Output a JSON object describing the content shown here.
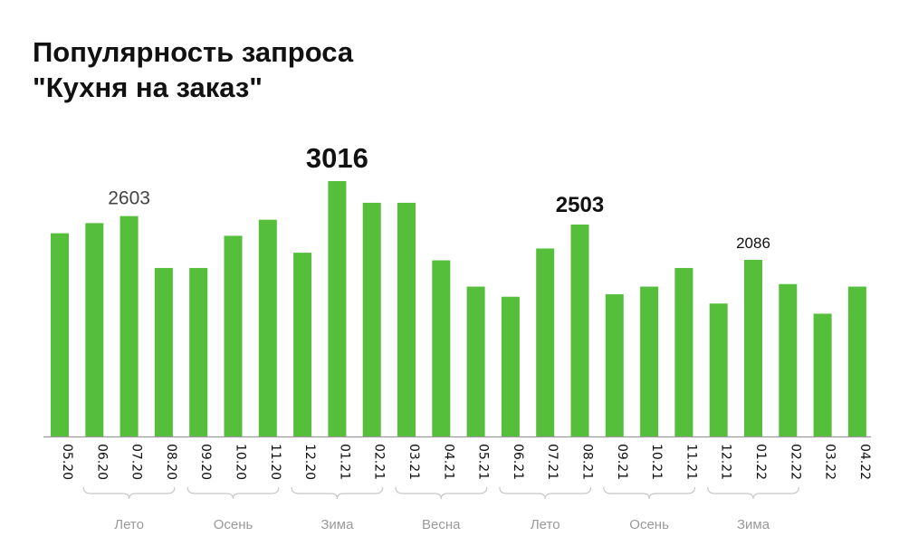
{
  "title_lines": [
    "Популярность запроса",
    "\"Кухня на заказ\""
  ],
  "colors": {
    "bar": "#55bf3b",
    "axis": "#9a9a9a",
    "brace": "#c8c8c8",
    "season_text": "#9a9a9a",
    "text": "#111111",
    "muted_label": "#444444"
  },
  "chart_data": {
    "type": "bar",
    "title": "Популярность запроса \"Кухня на заказ\"",
    "xlabel": "",
    "ylabel": "",
    "ylim": [
      0,
      3016
    ],
    "grid": false,
    "categories": [
      "05.20",
      "06.20",
      "07.20",
      "08.20",
      "09.20",
      "10.20",
      "11.20",
      "12.20",
      "01.21",
      "02.21",
      "03.21",
      "04.21",
      "05.21",
      "06.21",
      "07.21",
      "08.21",
      "09.21",
      "10.21",
      "11.21",
      "12.21",
      "01.22",
      "02.22",
      "03.22",
      "04.22"
    ],
    "values": [
      2400,
      2520,
      2603,
      1990,
      1990,
      2370,
      2560,
      2170,
      3016,
      2760,
      2760,
      2080,
      1770,
      1650,
      2220,
      2503,
      1680,
      1770,
      1990,
      1570,
      2086,
      1800,
      1450,
      1770
    ],
    "annotations": [
      {
        "index": 2,
        "label": "2603",
        "style": "light"
      },
      {
        "index": 8,
        "label": "3016",
        "style": "large-bold"
      },
      {
        "index": 15,
        "label": "2503",
        "style": "bold"
      },
      {
        "index": 20,
        "label": "2086",
        "style": "small"
      }
    ],
    "season_groups": [
      {
        "label": "Лето",
        "start": 1,
        "end": 3
      },
      {
        "label": "Осень",
        "start": 4,
        "end": 6
      },
      {
        "label": "Зима",
        "start": 7,
        "end": 9
      },
      {
        "label": "Весна",
        "start": 10,
        "end": 12
      },
      {
        "label": "Лето",
        "start": 13,
        "end": 15
      },
      {
        "label": "Осень",
        "start": 16,
        "end": 18
      },
      {
        "label": "Зима",
        "start": 19,
        "end": 21
      }
    ]
  }
}
